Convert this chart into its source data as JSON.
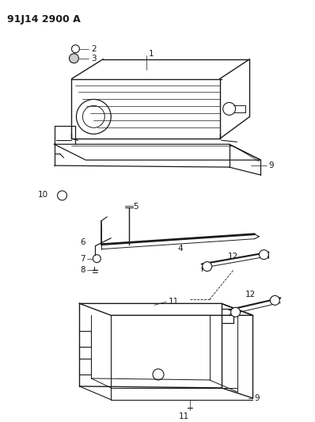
{
  "title": "91J14 2900 A",
  "bg_color": "#ffffff",
  "line_color": "#1a1a1a",
  "fig_width": 3.98,
  "fig_height": 5.33,
  "dpi": 100,
  "label_fontsize": 7.5,
  "title_fontsize": 9.0
}
